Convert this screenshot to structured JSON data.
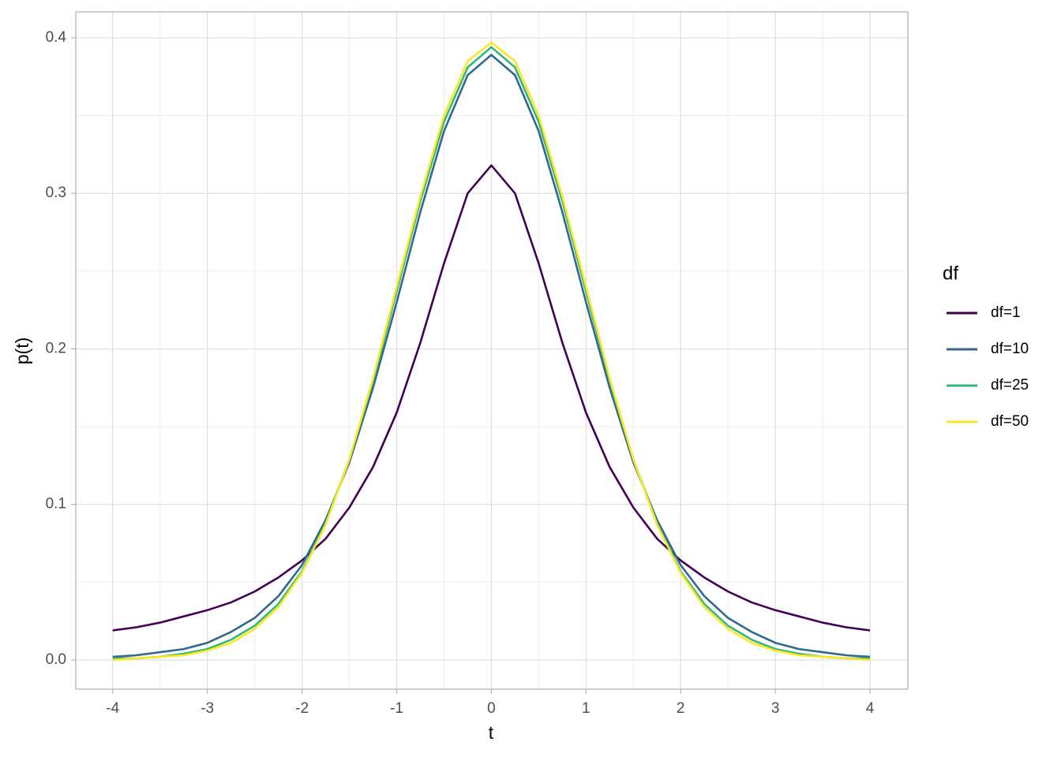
{
  "chart_data": {
    "type": "line",
    "xlabel": "t",
    "ylabel": "p(t)",
    "legend_title": "df",
    "legend_position": "right",
    "grid": true,
    "x": [
      -4,
      -3.75,
      -3.5,
      -3.25,
      -3,
      -2.75,
      -2.5,
      -2.25,
      -2,
      -1.75,
      -1.5,
      -1.25,
      -1,
      -0.75,
      -0.5,
      -0.25,
      0,
      0.25,
      0.5,
      0.75,
      1,
      1.25,
      1.5,
      1.75,
      2,
      2.25,
      2.5,
      2.75,
      3,
      3.25,
      3.5,
      3.75,
      4
    ],
    "series": [
      {
        "name": "df=1",
        "color": "#440154",
        "values": [
          0.019,
          0.021,
          0.024,
          0.028,
          0.032,
          0.037,
          0.044,
          0.053,
          0.064,
          0.078,
          0.098,
          0.124,
          0.159,
          0.204,
          0.255,
          0.3,
          0.318,
          0.3,
          0.255,
          0.204,
          0.159,
          0.124,
          0.098,
          0.078,
          0.064,
          0.053,
          0.044,
          0.037,
          0.032,
          0.028,
          0.024,
          0.021,
          0.019
        ]
      },
      {
        "name": "df=10",
        "color": "#31688e",
        "values": [
          0.002,
          0.003,
          0.005,
          0.007,
          0.011,
          0.018,
          0.027,
          0.041,
          0.061,
          0.09,
          0.127,
          0.175,
          0.23,
          0.288,
          0.34,
          0.376,
          0.389,
          0.376,
          0.34,
          0.288,
          0.23,
          0.175,
          0.127,
          0.09,
          0.061,
          0.041,
          0.027,
          0.018,
          0.011,
          0.007,
          0.005,
          0.003,
          0.002
        ]
      },
      {
        "name": "df=25",
        "color": "#35b779",
        "values": [
          0.001,
          0.001,
          0.002,
          0.004,
          0.007,
          0.013,
          0.022,
          0.036,
          0.057,
          0.088,
          0.129,
          0.179,
          0.237,
          0.295,
          0.346,
          0.381,
          0.394,
          0.381,
          0.346,
          0.295,
          0.237,
          0.179,
          0.129,
          0.088,
          0.057,
          0.036,
          0.022,
          0.013,
          0.007,
          0.004,
          0.002,
          0.001,
          0.001
        ]
      },
      {
        "name": "df=50",
        "color": "#fde725",
        "values": [
          0,
          0.001,
          0.002,
          0.003,
          0.006,
          0.011,
          0.02,
          0.034,
          0.056,
          0.087,
          0.129,
          0.181,
          0.24,
          0.298,
          0.35,
          0.385,
          0.397,
          0.385,
          0.35,
          0.298,
          0.24,
          0.181,
          0.129,
          0.087,
          0.056,
          0.034,
          0.02,
          0.011,
          0.006,
          0.003,
          0.002,
          0.001,
          0
        ]
      }
    ],
    "xlim": [
      -4.39,
      4.4
    ],
    "xticks": [
      -4,
      -3,
      -2,
      -1,
      0,
      1,
      2,
      3,
      4
    ],
    "ylim": [
      -0.0188,
      0.4167
    ],
    "yticks": [
      {
        "value": 0,
        "label": "0.0"
      },
      0.1,
      0.2,
      0.3,
      0.4
    ]
  }
}
